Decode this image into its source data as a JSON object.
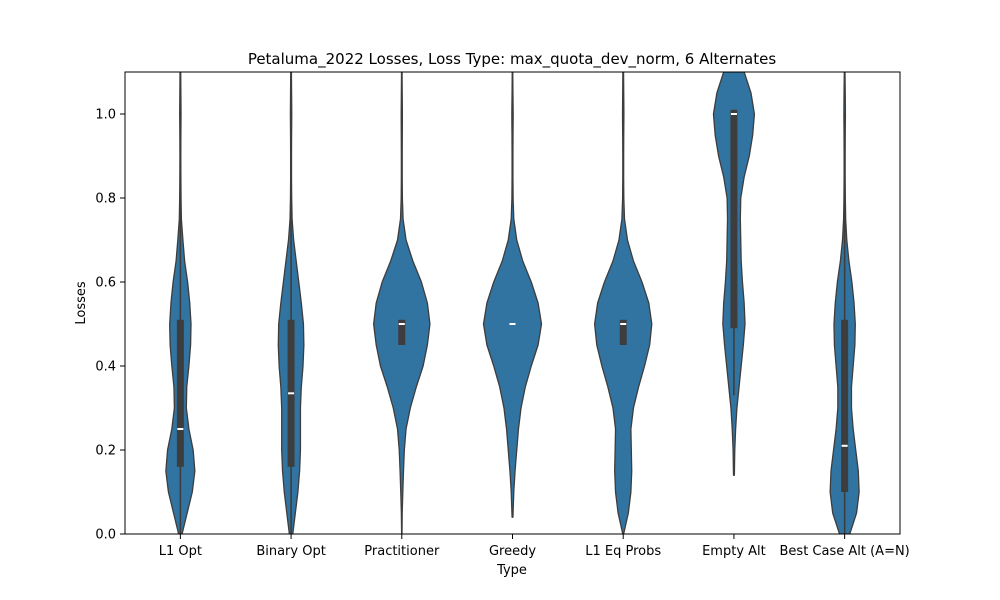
{
  "chart_data": {
    "type": "violin",
    "title": "Petaluma_2022 Losses, Loss Type: max_quota_dev_norm, 6 Alternates",
    "xlabel": "Type",
    "ylabel": "Losses",
    "ylim": [
      0,
      1.1
    ],
    "yticks": [
      "0.0",
      "0.2",
      "0.4",
      "0.6",
      "0.8",
      "1.0"
    ],
    "categories": [
      "L1 Opt",
      "Binary Opt",
      "Practitioner",
      "Greedy",
      "L1 Eq Probs",
      "Empty Alt",
      "Best Case Alt (A=N)"
    ],
    "color": "#3274a1",
    "box_color": "#3d3d3d",
    "violins": [
      {
        "name": "L1 Opt",
        "q1": 0.16,
        "median": 0.25,
        "q3": 0.51,
        "whisker_low": 0.0,
        "whisker_high": 1.0,
        "density": [
          [
            0.0,
            0.02
          ],
          [
            0.05,
            0.08
          ],
          [
            0.1,
            0.14
          ],
          [
            0.15,
            0.17
          ],
          [
            0.2,
            0.15
          ],
          [
            0.25,
            0.1
          ],
          [
            0.3,
            0.07
          ],
          [
            0.35,
            0.075
          ],
          [
            0.4,
            0.1
          ],
          [
            0.45,
            0.12
          ],
          [
            0.5,
            0.125
          ],
          [
            0.55,
            0.11
          ],
          [
            0.6,
            0.085
          ],
          [
            0.65,
            0.05
          ],
          [
            0.7,
            0.03
          ],
          [
            0.75,
            0.012
          ],
          [
            0.8,
            0.008
          ],
          [
            0.85,
            0.006
          ],
          [
            0.9,
            0.005
          ],
          [
            0.95,
            0.006
          ],
          [
            1.0,
            0.008
          ],
          [
            1.05,
            0.006
          ],
          [
            1.1,
            0.004
          ]
        ]
      },
      {
        "name": "Binary Opt",
        "q1": 0.16,
        "median": 0.335,
        "q3": 0.51,
        "whisker_low": 0.0,
        "whisker_high": 1.0,
        "density": [
          [
            0.0,
            0.02
          ],
          [
            0.05,
            0.05
          ],
          [
            0.1,
            0.08
          ],
          [
            0.15,
            0.1
          ],
          [
            0.2,
            0.11
          ],
          [
            0.25,
            0.11
          ],
          [
            0.3,
            0.11
          ],
          [
            0.35,
            0.12
          ],
          [
            0.4,
            0.14
          ],
          [
            0.45,
            0.15
          ],
          [
            0.5,
            0.145
          ],
          [
            0.55,
            0.12
          ],
          [
            0.6,
            0.09
          ],
          [
            0.65,
            0.06
          ],
          [
            0.7,
            0.03
          ],
          [
            0.75,
            0.012
          ],
          [
            0.8,
            0.007
          ],
          [
            0.85,
            0.005
          ],
          [
            0.9,
            0.005
          ],
          [
            0.95,
            0.006
          ],
          [
            1.0,
            0.008
          ],
          [
            1.05,
            0.006
          ],
          [
            1.1,
            0.004
          ]
        ]
      },
      {
        "name": "Practitioner",
        "q1": 0.45,
        "median": 0.5,
        "q3": 0.51,
        "whisker_low": 0.45,
        "whisker_high": 0.51,
        "density": [
          [
            0.0,
            0.002
          ],
          [
            0.05,
            0.005
          ],
          [
            0.1,
            0.012
          ],
          [
            0.15,
            0.02
          ],
          [
            0.2,
            0.03
          ],
          [
            0.25,
            0.05
          ],
          [
            0.3,
            0.1
          ],
          [
            0.35,
            0.17
          ],
          [
            0.4,
            0.25
          ],
          [
            0.45,
            0.3
          ],
          [
            0.5,
            0.33
          ],
          [
            0.55,
            0.3
          ],
          [
            0.6,
            0.23
          ],
          [
            0.65,
            0.13
          ],
          [
            0.7,
            0.05
          ],
          [
            0.75,
            0.015
          ],
          [
            0.8,
            0.007
          ],
          [
            0.85,
            0.005
          ],
          [
            0.9,
            0.005
          ],
          [
            0.95,
            0.006
          ],
          [
            1.0,
            0.007
          ],
          [
            1.05,
            0.005
          ],
          [
            1.1,
            0.003
          ]
        ]
      },
      {
        "name": "Greedy",
        "q1": 0.5,
        "median": 0.5,
        "q3": 0.5,
        "whisker_low": 0.5,
        "whisker_high": 0.5,
        "density": [
          [
            0.04,
            0.005
          ],
          [
            0.1,
            0.015
          ],
          [
            0.15,
            0.03
          ],
          [
            0.2,
            0.05
          ],
          [
            0.25,
            0.07
          ],
          [
            0.3,
            0.1
          ],
          [
            0.35,
            0.15
          ],
          [
            0.4,
            0.22
          ],
          [
            0.45,
            0.3
          ],
          [
            0.5,
            0.34
          ],
          [
            0.55,
            0.3
          ],
          [
            0.6,
            0.22
          ],
          [
            0.65,
            0.12
          ],
          [
            0.7,
            0.05
          ],
          [
            0.75,
            0.015
          ],
          [
            0.8,
            0.007
          ],
          [
            0.85,
            0.005
          ],
          [
            0.9,
            0.005
          ],
          [
            0.95,
            0.006
          ],
          [
            1.0,
            0.008
          ],
          [
            1.05,
            0.005
          ],
          [
            1.1,
            0.003
          ]
        ]
      },
      {
        "name": "L1 Eq Probs",
        "q1": 0.45,
        "median": 0.5,
        "q3": 0.51,
        "whisker_low": 0.45,
        "whisker_high": 0.51,
        "density": [
          [
            0.0,
            0.005
          ],
          [
            0.05,
            0.06
          ],
          [
            0.1,
            0.09
          ],
          [
            0.15,
            0.1
          ],
          [
            0.2,
            0.095
          ],
          [
            0.25,
            0.09
          ],
          [
            0.3,
            0.12
          ],
          [
            0.35,
            0.18
          ],
          [
            0.4,
            0.25
          ],
          [
            0.45,
            0.31
          ],
          [
            0.5,
            0.335
          ],
          [
            0.55,
            0.3
          ],
          [
            0.6,
            0.22
          ],
          [
            0.65,
            0.12
          ],
          [
            0.7,
            0.05
          ],
          [
            0.75,
            0.015
          ],
          [
            0.8,
            0.007
          ],
          [
            0.85,
            0.005
          ],
          [
            0.9,
            0.005
          ],
          [
            0.95,
            0.006
          ],
          [
            1.0,
            0.008
          ],
          [
            1.05,
            0.006
          ],
          [
            1.1,
            0.004
          ]
        ]
      },
      {
        "name": "Empty Alt",
        "q1": 0.49,
        "median": 1.0,
        "q3": 1.01,
        "whisker_low": 0.33,
        "whisker_high": 1.01,
        "density": [
          [
            0.14,
            0.005
          ],
          [
            0.2,
            0.01
          ],
          [
            0.25,
            0.02
          ],
          [
            0.3,
            0.035
          ],
          [
            0.35,
            0.06
          ],
          [
            0.4,
            0.085
          ],
          [
            0.45,
            0.11
          ],
          [
            0.5,
            0.13
          ],
          [
            0.55,
            0.12
          ],
          [
            0.6,
            0.1
          ],
          [
            0.65,
            0.085
          ],
          [
            0.7,
            0.08
          ],
          [
            0.75,
            0.075
          ],
          [
            0.8,
            0.08
          ],
          [
            0.85,
            0.12
          ],
          [
            0.9,
            0.18
          ],
          [
            0.95,
            0.22
          ],
          [
            1.0,
            0.24
          ],
          [
            1.05,
            0.2
          ],
          [
            1.1,
            0.12
          ]
        ]
      },
      {
        "name": "Best Case Alt (A=N)",
        "q1": 0.1,
        "median": 0.21,
        "q3": 0.51,
        "whisker_low": 0.0,
        "whisker_high": 1.0,
        "density": [
          [
            0.0,
            0.06
          ],
          [
            0.05,
            0.14
          ],
          [
            0.1,
            0.17
          ],
          [
            0.15,
            0.16
          ],
          [
            0.2,
            0.13
          ],
          [
            0.25,
            0.1
          ],
          [
            0.3,
            0.08
          ],
          [
            0.35,
            0.08
          ],
          [
            0.4,
            0.1
          ],
          [
            0.45,
            0.12
          ],
          [
            0.5,
            0.125
          ],
          [
            0.55,
            0.11
          ],
          [
            0.6,
            0.085
          ],
          [
            0.65,
            0.05
          ],
          [
            0.7,
            0.025
          ],
          [
            0.75,
            0.012
          ],
          [
            0.8,
            0.008
          ],
          [
            0.85,
            0.006
          ],
          [
            0.9,
            0.006
          ],
          [
            0.95,
            0.007
          ],
          [
            1.0,
            0.009
          ],
          [
            1.05,
            0.007
          ],
          [
            1.1,
            0.004
          ]
        ]
      }
    ]
  }
}
